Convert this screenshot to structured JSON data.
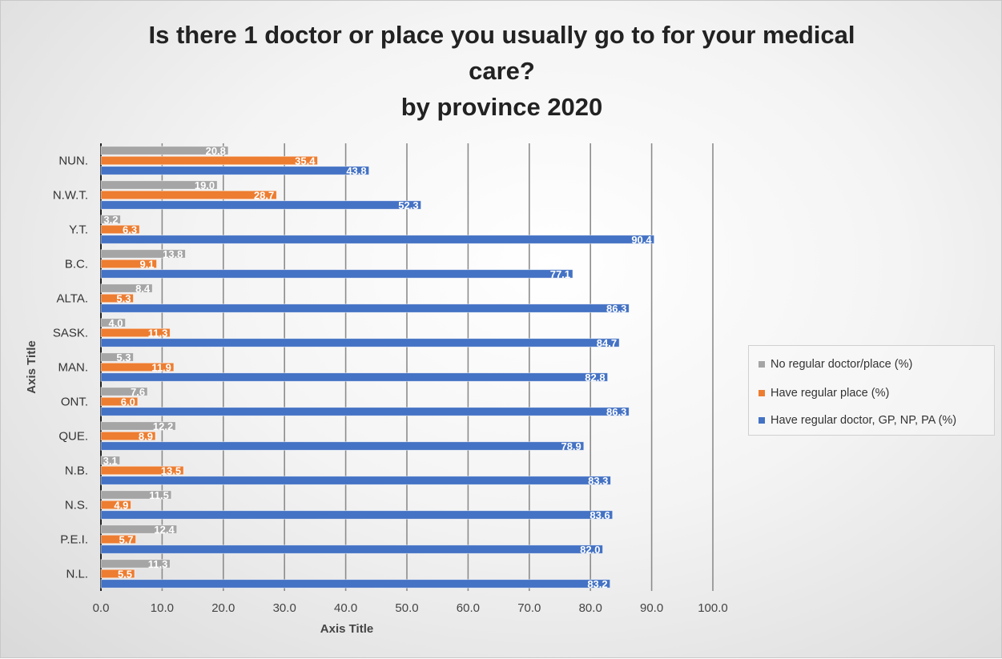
{
  "chart_data": {
    "type": "bar",
    "orientation": "horizontal",
    "title_lines": [
      "Is there 1 doctor or place you usually go to for your medical",
      "care?",
      "by province 2020"
    ],
    "xlabel": "Axis Title",
    "ylabel": "Axis Title",
    "xlim": [
      0,
      100
    ],
    "xticks": [
      "0.0",
      "10.0",
      "20.0",
      "30.0",
      "40.0",
      "50.0",
      "60.0",
      "70.0",
      "80.0",
      "90.0",
      "100.0"
    ],
    "categories": [
      "NUN.",
      "N.W.T.",
      "Y.T.",
      "B.C.",
      "ALTA.",
      "SASK.",
      "MAN.",
      "ONT.",
      "QUE.",
      "N.B.",
      "N.S.",
      "P.E.I.",
      "N.L."
    ],
    "series": [
      {
        "name": "No regular doctor/place (%)",
        "color": "#a5a5a5",
        "values": [
          20.8,
          19.0,
          3.2,
          13.8,
          8.4,
          4.0,
          5.3,
          7.6,
          12.2,
          3.1,
          11.5,
          12.4,
          11.3
        ]
      },
      {
        "name": "Have regular place (%)",
        "color": "#ed7d31",
        "values": [
          35.4,
          28.7,
          6.3,
          9.1,
          5.3,
          11.3,
          11.9,
          6.0,
          8.9,
          13.5,
          4.9,
          5.7,
          5.5
        ]
      },
      {
        "name": "Have regular doctor, GP, NP, PA (%)",
        "color": "#4472c4",
        "values": [
          43.8,
          52.3,
          90.4,
          77.1,
          86.3,
          84.7,
          82.8,
          86.3,
          78.9,
          83.3,
          83.6,
          82.0,
          83.2
        ]
      }
    ],
    "grid": true,
    "legend_position": "right",
    "data_labels": true
  }
}
